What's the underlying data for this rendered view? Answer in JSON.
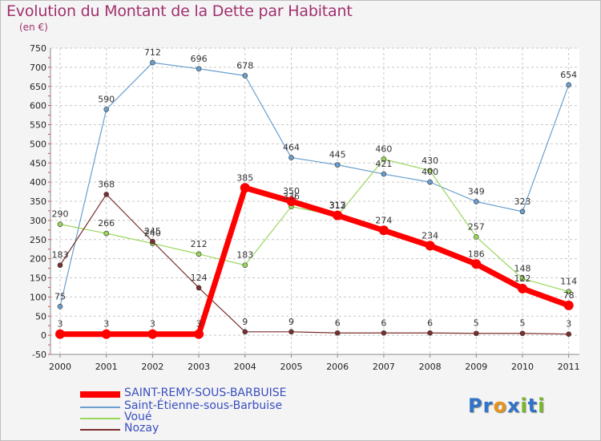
{
  "title": "Evolution du Montant de la Dette par Habitant",
  "unit": "(en €)",
  "logo": {
    "text": "Proxiti",
    "letters": [
      {
        "ch": "P",
        "color": "#2f74c8"
      },
      {
        "ch": "r",
        "color": "#2f74c8"
      },
      {
        "ch": "o",
        "color": "#e8931a"
      },
      {
        "ch": "x",
        "color": "#2f74c8"
      },
      {
        "ch": "i",
        "color": "#7ab829"
      },
      {
        "ch": "t",
        "color": "#2f74c8"
      },
      {
        "ch": "i",
        "color": "#7ab829"
      }
    ]
  },
  "chart_data": {
    "type": "line",
    "title": "Evolution du Montant de la Dette par Habitant",
    "ylabel": "(en €)",
    "x": [
      "2000",
      "2001",
      "2002",
      "2003",
      "2004",
      "2005",
      "2006",
      "2007",
      "2008",
      "2009",
      "2010",
      "2011"
    ],
    "ylim": [
      -50,
      750
    ],
    "yticks": [
      -50,
      0,
      50,
      100,
      150,
      200,
      250,
      300,
      350,
      400,
      450,
      500,
      550,
      600,
      650,
      700,
      750
    ],
    "grid": true,
    "legend": "bottom-left",
    "series": [
      {
        "name": "SAINT-REMY-SOUS-BARBUISE",
        "color": "#ff0000",
        "width": 7,
        "marker": 6,
        "values": [
          3,
          3,
          3,
          3,
          385,
          350,
          313,
          274,
          234,
          186,
          122,
          78
        ],
        "labels": [
          "3",
          "3",
          "3",
          "3",
          "385",
          "350",
          "313",
          "274",
          "234",
          "186",
          "122",
          "78"
        ]
      },
      {
        "name": "Saint-Étienne-sous-Barbuise",
        "color": "#6a9fd0",
        "width": 1.2,
        "marker": 3,
        "values": [
          75,
          590,
          712,
          696,
          678,
          464,
          445,
          421,
          400,
          349,
          323,
          654
        ],
        "labels": [
          "75",
          "590",
          "712",
          "696",
          "678",
          "464",
          "445",
          "421",
          "400",
          "349",
          "323",
          "654"
        ]
      },
      {
        "name": "Voué",
        "color": "#99d65b",
        "width": 1.2,
        "marker": 3,
        "values": [
          290,
          266,
          240,
          212,
          183,
          336,
          312,
          460,
          430,
          257,
          148,
          114
        ],
        "labels": [
          "290",
          "266",
          "240",
          "212",
          "183",
          "336",
          "312",
          "460",
          "430",
          "257",
          "148",
          "114"
        ]
      },
      {
        "name": "Nozay",
        "color": "#7b2e2e",
        "width": 1.2,
        "marker": 3,
        "values": [
          183,
          368,
          245,
          124,
          9,
          9,
          6,
          6,
          6,
          5,
          5,
          3
        ],
        "labels": [
          "183",
          "368",
          "245",
          "124",
          "9",
          "9",
          "6",
          "6",
          "6",
          "5",
          "5",
          "3"
        ]
      }
    ]
  }
}
